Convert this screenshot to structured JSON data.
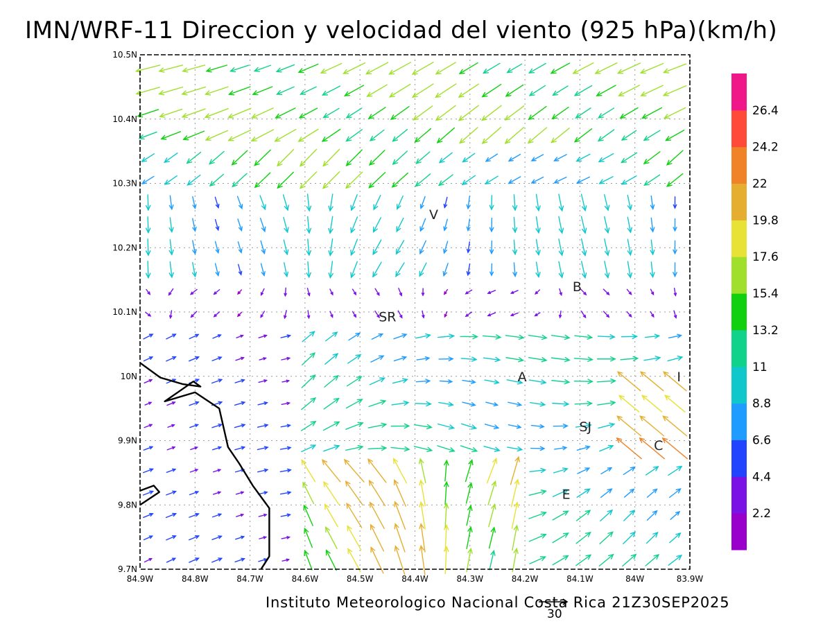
{
  "title": "IMN/WRF-11 Direccion y velocidad del viento (925 hPa)(km/h)",
  "footer": "Instituto Meteorologico Nacional Costa Rica 21Z30SEP2025",
  "reference_vector": {
    "label": "30",
    "speed": 30
  },
  "colors": {
    "frame": "#000000",
    "grid": "#9a9a9a",
    "coastline": "#000000",
    "place_label": "#222222"
  },
  "chart_data": {
    "type": "vector-field",
    "x_axis": {
      "range": [
        -84.9,
        -83.9
      ],
      "ticks": [
        {
          "value": -84.9,
          "label": "84.9W"
        },
        {
          "value": -84.8,
          "label": "84.8W"
        },
        {
          "value": -84.7,
          "label": "84.7W"
        },
        {
          "value": -84.6,
          "label": "84.6W"
        },
        {
          "value": -84.5,
          "label": "84.5W"
        },
        {
          "value": -84.4,
          "label": "84.4W"
        },
        {
          "value": -84.3,
          "label": "84.3W"
        },
        {
          "value": -84.2,
          "label": "84.2W"
        },
        {
          "value": -84.1,
          "label": "84.1W"
        },
        {
          "value": -84.0,
          "label": "84W"
        },
        {
          "value": -83.9,
          "label": "83.9W"
        }
      ]
    },
    "y_axis": {
      "range": [
        9.7,
        10.5
      ],
      "ticks": [
        {
          "value": 9.7,
          "label": "9.7N"
        },
        {
          "value": 9.8,
          "label": "9.8N"
        },
        {
          "value": 9.9,
          "label": "9.9N"
        },
        {
          "value": 10.0,
          "label": "10N"
        },
        {
          "value": 10.1,
          "label": "10.1N"
        },
        {
          "value": 10.2,
          "label": "10.2N"
        },
        {
          "value": 10.3,
          "label": "10.3N"
        },
        {
          "value": 10.4,
          "label": "10.4N"
        },
        {
          "value": 10.5,
          "label": "10.5N"
        }
      ]
    },
    "grid": true,
    "legend": {
      "placement": "right",
      "colors": [
        "#9900cc",
        "#7a11e5",
        "#2244ff",
        "#1e9cff",
        "#10c8cc",
        "#11d28a",
        "#10d010",
        "#a0e02c",
        "#e7e235",
        "#e6ae30",
        "#f08228",
        "#ff4a3a",
        "#f01889"
      ],
      "labels": [
        "2.2",
        "4.4",
        "6.6",
        "8.8",
        "11",
        "13.2",
        "15.4",
        "17.6",
        "19.8",
        "22",
        "24.2",
        "26.4"
      ]
    },
    "places": [
      {
        "name": "V",
        "lon": -84.366,
        "lat": 10.252
      },
      {
        "name": "SR",
        "lon": -84.45,
        "lat": 10.093
      },
      {
        "name": "B",
        "lon": -84.105,
        "lat": 10.14
      },
      {
        "name": "A",
        "lon": -84.205,
        "lat": 10.0
      },
      {
        "name": "SJ",
        "lon": -84.09,
        "lat": 9.922
      },
      {
        "name": "I",
        "lon": -83.92,
        "lat": 10.0
      },
      {
        "name": "C",
        "lon": -83.957,
        "lat": 9.893
      },
      {
        "name": "E",
        "lon": -84.125,
        "lat": 9.817
      }
    ],
    "coastline": [
      [
        -84.9,
        10.021
      ],
      [
        -84.863,
        9.998
      ],
      [
        -84.823,
        9.988
      ],
      [
        -84.79,
        9.984
      ],
      [
        -84.803,
        9.992
      ],
      [
        -84.855,
        9.961
      ],
      [
        -84.8,
        9.975
      ],
      [
        -84.756,
        9.95
      ],
      [
        -84.74,
        9.89
      ],
      [
        -84.72,
        9.865
      ],
      [
        -84.695,
        9.83
      ],
      [
        -84.665,
        9.795
      ],
      [
        -84.665,
        9.72
      ],
      [
        -84.68,
        9.7
      ]
    ],
    "coastline_south": [
      [
        -84.9,
        9.822
      ],
      [
        -84.875,
        9.83
      ],
      [
        -84.865,
        9.82
      ],
      [
        -84.9,
        9.8
      ]
    ]
  }
}
